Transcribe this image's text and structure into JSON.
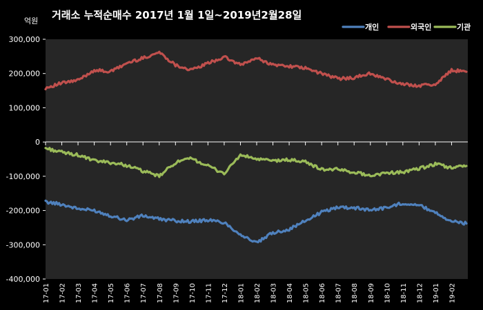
{
  "chart_data": {
    "type": "line",
    "title": "거래소 누적순매수 2017년 1월 1일~2019년2월28일",
    "unit_label": "억원",
    "ylim": [
      -400000,
      300000
    ],
    "yticks": [
      300000,
      200000,
      100000,
      0,
      -100000,
      -200000,
      -300000,
      -400000
    ],
    "ytick_labels": [
      "300,000",
      "200,000",
      "100,000",
      "0",
      "-100,000",
      "-200,000",
      "-300,000",
      "-400,000"
    ],
    "x": [
      "17-01",
      "17-02",
      "17-03",
      "17-04",
      "17-05",
      "17-06",
      "17-07",
      "17-08",
      "17-09",
      "17-10",
      "17-11",
      "17-12",
      "18-01",
      "18-02",
      "18-03",
      "18-04",
      "18-05",
      "18-06",
      "18-07",
      "18-08",
      "18-09",
      "18-10",
      "18-11",
      "18-12",
      "19-01",
      "19-02"
    ],
    "grid": false,
    "legend_position": "top-right",
    "series": [
      {
        "name": "개인",
        "color": "#4f81bd",
        "values": [
          -175000,
          -182000,
          -195000,
          -200000,
          -215000,
          -228000,
          -215000,
          -225000,
          -230000,
          -232000,
          -228000,
          -235000,
          -270000,
          -295000,
          -265000,
          -255000,
          -230000,
          -205000,
          -190000,
          -192000,
          -198000,
          -192000,
          -178000,
          -185000,
          -205000,
          -232000
        ],
        "end_value": -238000
      },
      {
        "name": "외국인",
        "color": "#c0504d",
        "values": [
          158000,
          172000,
          180000,
          210000,
          205000,
          230000,
          245000,
          262000,
          225000,
          210000,
          230000,
          248000,
          225000,
          245000,
          225000,
          222000,
          215000,
          200000,
          185000,
          188000,
          200000,
          183000,
          168000,
          165000,
          168000,
          210000
        ],
        "end_value": 205000
      },
      {
        "name": "기관",
        "color": "#9bbb59",
        "values": [
          -18000,
          -30000,
          -38000,
          -55000,
          -60000,
          -68000,
          -85000,
          -100000,
          -60000,
          -48000,
          -70000,
          -92000,
          -38000,
          -50000,
          -55000,
          -52000,
          -58000,
          -80000,
          -80000,
          -88000,
          -98000,
          -90000,
          -88000,
          -78000,
          -65000,
          -75000
        ],
        "end_value": -70000
      }
    ]
  }
}
